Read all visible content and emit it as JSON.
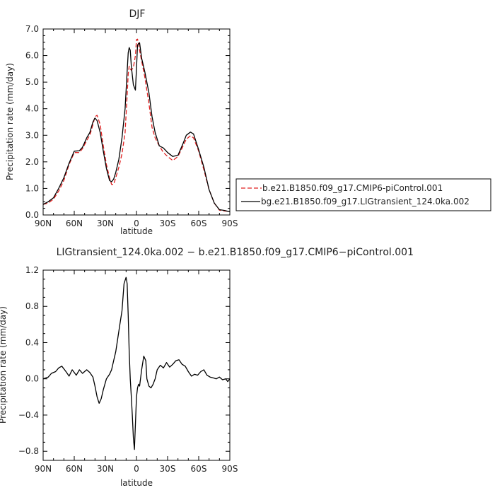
{
  "chart_data": [
    {
      "type": "line",
      "title": "DJF",
      "xlabel": "latitude",
      "ylabel": "Precipitation rate (mm/day)",
      "xlim": [
        90,
        -90
      ],
      "ylim": [
        0,
        7
      ],
      "xticks": [
        90,
        60,
        30,
        0,
        -30,
        -60,
        -90
      ],
      "xtick_labels": [
        "90N",
        "60N",
        "30N",
        "0",
        "30S",
        "60S",
        "90S"
      ],
      "yticks": [
        0,
        1,
        2,
        3,
        4,
        5,
        6,
        7
      ],
      "ytick_labels": [
        "0.0",
        "1.0",
        "2.0",
        "3.0",
        "4.0",
        "5.0",
        "6.0",
        "7.0"
      ],
      "legend_position": "right",
      "series": [
        {
          "name": "b.e21.B1850.f09_g17.CMIP6-piControl.001",
          "color": "#e02020",
          "dash": "dashed",
          "x": [
            90,
            85,
            80,
            75,
            70,
            65,
            60,
            55,
            52,
            48,
            45,
            42,
            40,
            38,
            35,
            32,
            29,
            26,
            24,
            22,
            20,
            17,
            14,
            11,
            9,
            8,
            7,
            6,
            5,
            3,
            1,
            0,
            -1,
            -3,
            -5,
            -8,
            -12,
            -15,
            -18,
            -22,
            -26,
            -30,
            -35,
            -40,
            -45,
            -48,
            -52,
            -55,
            -60,
            -65,
            -70,
            -75,
            -80,
            -85,
            -90
          ],
          "y": [
            0.4,
            0.45,
            0.6,
            0.9,
            1.3,
            1.9,
            2.35,
            2.35,
            2.5,
            2.8,
            3.0,
            3.4,
            3.7,
            3.75,
            3.4,
            2.6,
            1.9,
            1.4,
            1.15,
            1.15,
            1.4,
            1.8,
            2.3,
            3.1,
            4.5,
            5.3,
            5.6,
            5.5,
            5.45,
            5.55,
            6.0,
            6.6,
            6.62,
            6.2,
            5.8,
            5.2,
            4.2,
            3.3,
            2.9,
            2.6,
            2.35,
            2.2,
            2.05,
            2.2,
            2.6,
            2.85,
            2.98,
            2.9,
            2.4,
            1.7,
            0.95,
            0.45,
            0.18,
            0.15,
            0.13
          ]
        },
        {
          "name": "bg.e21.B1850.f09_g17.LIGtransient_124.0ka.002",
          "color": "#000000",
          "dash": "solid",
          "x": [
            90,
            85,
            80,
            75,
            70,
            65,
            60,
            55,
            52,
            48,
            45,
            42,
            40,
            38,
            35,
            32,
            29,
            26,
            24,
            22,
            20,
            17,
            14,
            11,
            9,
            8,
            7,
            6,
            5,
            3,
            1,
            0,
            -1,
            -3,
            -5,
            -8,
            -12,
            -15,
            -18,
            -22,
            -26,
            -30,
            -35,
            -40,
            -45,
            -48,
            -52,
            -55,
            -60,
            -65,
            -70,
            -75,
            -80,
            -85,
            -90
          ],
          "y": [
            0.4,
            0.5,
            0.65,
            1.0,
            1.4,
            1.95,
            2.4,
            2.42,
            2.55,
            2.9,
            3.1,
            3.5,
            3.65,
            3.55,
            3.1,
            2.4,
            1.75,
            1.3,
            1.25,
            1.35,
            1.6,
            2.1,
            2.9,
            4.0,
            5.4,
            6.1,
            6.3,
            6.2,
            5.6,
            4.9,
            4.7,
            5.5,
            6.4,
            6.48,
            5.9,
            5.4,
            4.6,
            3.7,
            3.1,
            2.6,
            2.52,
            2.35,
            2.2,
            2.25,
            2.7,
            3.0,
            3.12,
            3.05,
            2.45,
            1.8,
            0.95,
            0.45,
            0.2,
            0.17,
            0.12
          ]
        }
      ]
    },
    {
      "type": "line",
      "title": "LIGtransient_124.0ka.002 − b.e21.B1850.f09_g17.CMIP6−piControl.001",
      "xlabel": "latitude",
      "ylabel": "Precipitation rate (mm/day)",
      "xlim": [
        90,
        -90
      ],
      "ylim": [
        -0.9,
        1.2
      ],
      "xticks": [
        90,
        60,
        30,
        0,
        -30,
        -60,
        -90
      ],
      "xtick_labels": [
        "90N",
        "60N",
        "30N",
        "0",
        "30S",
        "60S",
        "90S"
      ],
      "yticks": [
        -0.8,
        -0.4,
        0.0,
        0.4,
        0.8,
        1.2
      ],
      "ytick_labels": [
        "−0.8",
        "−0.4",
        "0.0",
        "0.4",
        "0.8",
        "1.2"
      ],
      "series": [
        {
          "name": "",
          "color": "#000000",
          "dash": "solid",
          "x": [
            90,
            85,
            82,
            78,
            75,
            72,
            68,
            65,
            62,
            58,
            55,
            52,
            48,
            45,
            42,
            40,
            38,
            36,
            34,
            32,
            29,
            26,
            24,
            22,
            20,
            18,
            16,
            14,
            12,
            10,
            9,
            8,
            7,
            6,
            5,
            4,
            3,
            2,
            1,
            0,
            -1,
            -2,
            -3,
            -5,
            -7,
            -9,
            -10,
            -12,
            -14,
            -16,
            -18,
            -20,
            -23,
            -26,
            -29,
            -32,
            -35,
            -38,
            -41,
            -44,
            -47,
            -50,
            -53,
            -56,
            -59,
            -62,
            -65,
            -68,
            -71,
            -74,
            -77,
            -80,
            -83,
            -86,
            -88,
            -90
          ],
          "y": [
            0.0,
            0.02,
            0.06,
            0.08,
            0.12,
            0.14,
            0.08,
            0.03,
            0.1,
            0.04,
            0.1,
            0.06,
            0.1,
            0.07,
            0.02,
            -0.08,
            -0.2,
            -0.27,
            -0.22,
            -0.12,
            0.0,
            0.05,
            0.1,
            0.2,
            0.3,
            0.45,
            0.6,
            0.75,
            1.05,
            1.12,
            1.05,
            0.7,
            0.3,
            0.0,
            -0.2,
            -0.4,
            -0.65,
            -0.78,
            -0.5,
            -0.2,
            -0.1,
            -0.06,
            -0.08,
            0.1,
            0.25,
            0.2,
            0.0,
            -0.08,
            -0.1,
            -0.06,
            0.0,
            0.1,
            0.15,
            0.12,
            0.18,
            0.13,
            0.16,
            0.2,
            0.21,
            0.16,
            0.14,
            0.08,
            0.03,
            0.05,
            0.04,
            0.08,
            0.1,
            0.04,
            0.02,
            0.01,
            0.0,
            0.02,
            -0.01,
            0.0,
            -0.03,
            0.0
          ]
        }
      ]
    }
  ]
}
